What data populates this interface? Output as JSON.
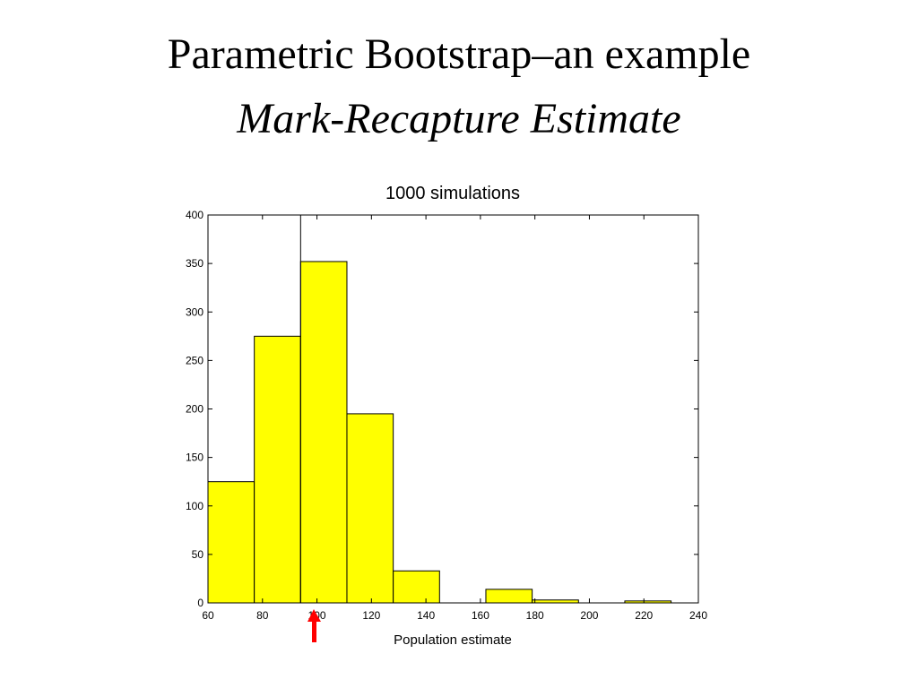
{
  "slide": {
    "title": "Parametric Bootstrap–an example",
    "subtitle": "Mark-Recapture Estimate"
  },
  "chart_data": {
    "type": "histogram",
    "title": "1000 simulations",
    "x_label": "Population estimate",
    "bins": [
      60,
      77,
      94,
      111,
      128,
      145,
      162,
      179,
      196,
      213,
      230
    ],
    "counts": [
      125,
      275,
      352,
      195,
      33,
      0,
      14,
      3,
      0,
      2
    ],
    "color": "#ffff00",
    "edge_color": "#000000",
    "reference_line": 94,
    "xlim": [
      60,
      240
    ],
    "xticks": [
      60,
      80,
      100,
      120,
      140,
      160,
      180,
      200,
      220,
      240
    ],
    "ylim": [
      0,
      400
    ],
    "yticks": [
      0,
      50,
      100,
      150,
      200,
      250,
      300,
      350,
      400
    ]
  }
}
